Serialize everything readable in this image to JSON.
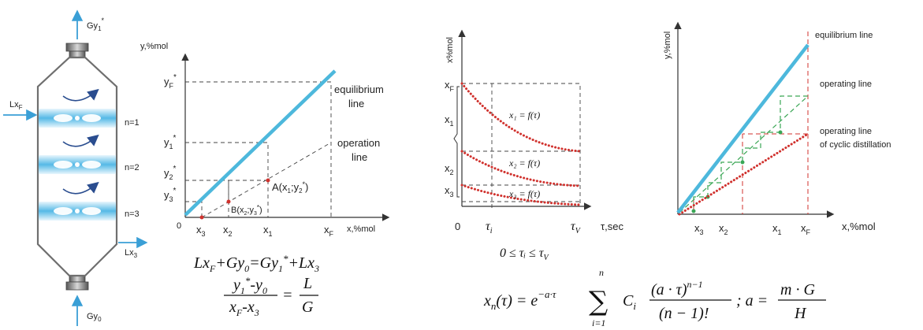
{
  "column": {
    "top_stream": "Gy",
    "top_stream_sub": "1",
    "bottom_stream": "Gy",
    "bottom_stream_sub": "0",
    "feed": "Lx",
    "feed_sub": "F",
    "bottoms": "Lx",
    "bottoms_sub": "3",
    "stages": [
      "n=1",
      "n=2",
      "n=3"
    ],
    "colors": {
      "shell": "#7a7a7a",
      "liquid": "#3aa7dd",
      "arrow": "#3a9fd6",
      "swirl": "#2a4d8f"
    }
  },
  "diagram1": {
    "y_axis": "y,%mol",
    "x_axis": "x,%mol",
    "origin": "0",
    "y_ticks": [
      "y",
      "y",
      "y",
      "y"
    ],
    "y_ticks_sub": [
      "F",
      "1",
      "2",
      "3"
    ],
    "x_ticks": [
      "x",
      "x",
      "x",
      "x"
    ],
    "x_ticks_sub": [
      "3",
      "2",
      "1",
      "F"
    ],
    "equilibrium_label": [
      "equilibrium",
      "line"
    ],
    "operation_label": [
      "operation",
      "line"
    ],
    "point_a": "A(x",
    "point_a_rest": ";y",
    "point_b": "B(x",
    "point_b_rest": ";y",
    "equations": {
      "balance": "Lx_F+Gy_0=Gy_1*+Lx_3",
      "ratio_num": "y_1*-y_0",
      "ratio_den": "x_F-x_3",
      "ratio_rhs_num": "L",
      "ratio_rhs_den": "G"
    }
  },
  "diagram2": {
    "y_axis": "x%mol",
    "x_axis": "τ,sec",
    "origin": "0",
    "y_ticks": [
      "x",
      "x",
      "x",
      "x"
    ],
    "y_ticks_sub": [
      "F",
      "1",
      "2",
      "3"
    ],
    "tau_i": "τ",
    "tau_i_sub": "i",
    "tau_v": "τ",
    "tau_v_sub": "V",
    "curve_labels": [
      "x₁ = f(τ)",
      "x₂ = f(τ)",
      "x₃ = f(τ)"
    ],
    "constraint": "0 ≤ τᵢ ≤ τ",
    "constraint_sub": "V",
    "formula_lhs": "x",
    "formula_lhs_rest": "(τ) = e",
    "formula_exp": "−a·τ",
    "formula_sum_top": "n",
    "formula_sum_bottom": "i=1",
    "formula_term": "C",
    "formula_num": "(a · τ)",
    "formula_num_exp": "n−1",
    "formula_den": "(n − 1)!",
    "formula_a": "; a =",
    "formula_a_num": "m · G",
    "formula_a_den": "H"
  },
  "diagram3": {
    "y_axis": "y,%mol",
    "x_axis": "x,%mol",
    "x_ticks": [
      "x",
      "x",
      "x",
      "x"
    ],
    "x_ticks_sub": [
      "3",
      "2",
      "1",
      "F"
    ],
    "labels": [
      "equilibrium  line",
      "operating  line",
      "operating  line",
      "of cyclic distillation"
    ]
  }
}
